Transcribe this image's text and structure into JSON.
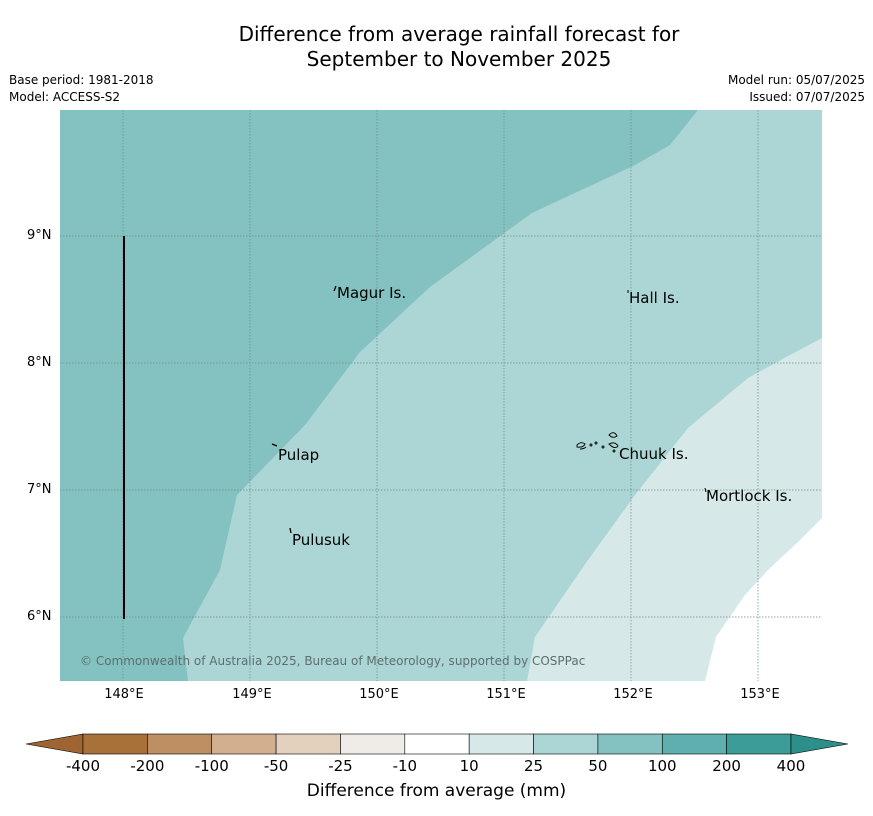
{
  "title_line1": "Difference from average rainfall forecast for",
  "title_line2": "September to November 2025",
  "base_period": "Base period: 1981-2018",
  "model": "Model: ACCESS-S2",
  "model_run": "Model run: 05/07/2025",
  "issued": "Issued: 07/07/2025",
  "lat_labels": [
    "9°N",
    "8°N",
    "7°N",
    "6°N"
  ],
  "lon_labels": [
    "148°E",
    "149°E",
    "150°E",
    "151°E",
    "152°E",
    "153°E"
  ],
  "places": {
    "magur": "Magur Is.",
    "hall": "Hall Is.",
    "pulap": "Pulap",
    "chuuk": "Chuuk Is.",
    "mortlock": "Mortlock Is.",
    "pulusuk": "Pulusuk"
  },
  "copyright": "© Commonwealth of Australia 2025, Bureau of Meteorology, supported by COSPPac",
  "colorbar": {
    "ticks": [
      "-400",
      "-200",
      "-100",
      "-50",
      "-25",
      "-10",
      "10",
      "25",
      "50",
      "100",
      "200",
      "400"
    ],
    "colors": [
      "#a9713a",
      "#be8f63",
      "#d2b08f",
      "#e3d0bd",
      "#efebe7",
      "#ffffff",
      "#d6e9e8",
      "#acd6d5",
      "#84c2c1",
      "#5eafae",
      "#3c9c98"
    ],
    "label": "Difference from average (mm)"
  }
}
